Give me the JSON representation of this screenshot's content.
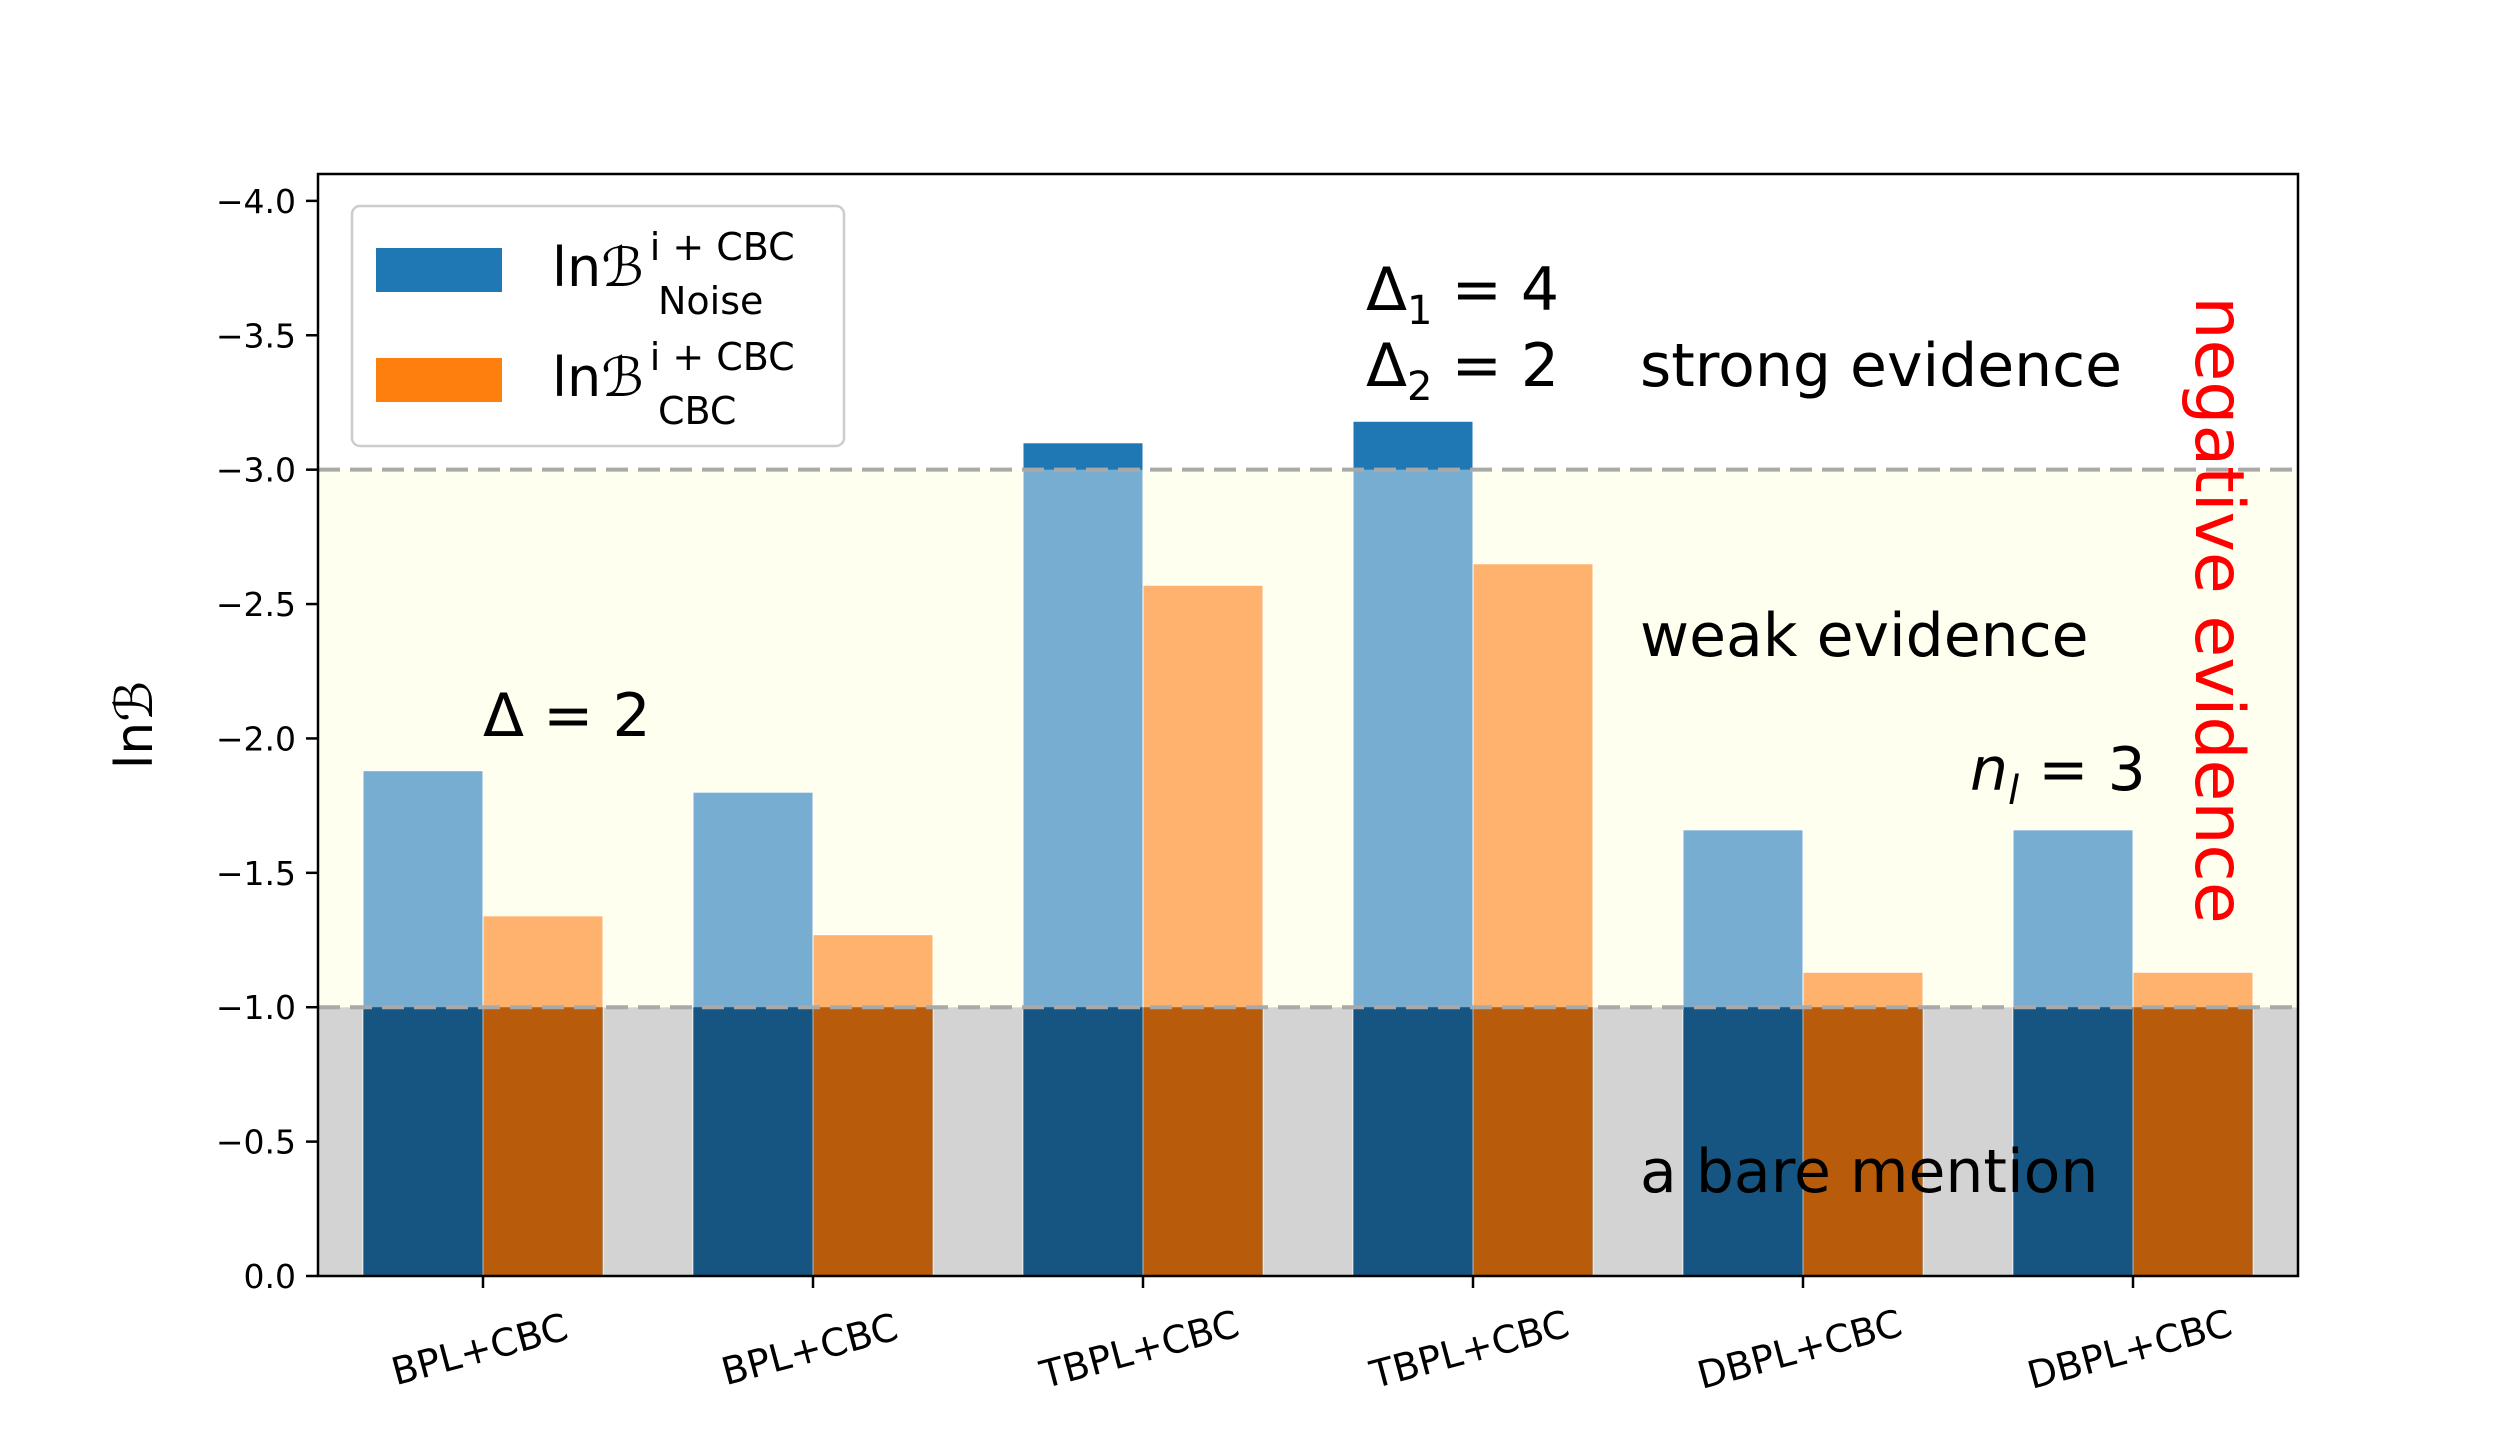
{
  "chart_data": {
    "type": "bar",
    "ylabel": "lnℬ",
    "ylim": [
      0.0,
      -4.1
    ],
    "y_inverted": true,
    "yticks": [
      "0.0",
      "−0.5",
      "−1.0",
      "−1.5",
      "−2.0",
      "−2.5",
      "−3.0",
      "−3.5",
      "−4.0"
    ],
    "ytick_values": [
      0.0,
      -0.5,
      -1.0,
      -1.5,
      -2.0,
      -2.5,
      -3.0,
      -3.5,
      -4.0
    ],
    "categories": [
      "BPL+CBC",
      "BPL+CBC",
      "TBPL+CBC",
      "TBPL+CBC",
      "DBPL+CBC",
      "DBPL+CBC"
    ],
    "series": [
      {
        "legend_main": "lnℬ",
        "legend_sup": "i + CBC",
        "legend_sub": "Noise",
        "color": "#1f77b4",
        "values": [
          -1.88,
          -1.8,
          -3.1,
          -3.18,
          -1.66,
          -1.66
        ]
      },
      {
        "legend_main": "lnℬ",
        "legend_sup": "i + CBC",
        "legend_sub": "CBC",
        "color": "#ff7f0e",
        "values": [
          -1.34,
          -1.27,
          -2.57,
          -2.65,
          -1.13,
          -1.13
        ]
      }
    ],
    "regions": [
      {
        "label": "a bare mention",
        "from": 0.0,
        "to": -1.0,
        "color": "#d3d3d3"
      },
      {
        "label": "weak evidence",
        "from": -1.0,
        "to": -3.0,
        "color": "#fffff0"
      },
      {
        "label": "strong evidence",
        "from": -3.0,
        "to": -4.1,
        "color": "#ffffff"
      }
    ],
    "threshold_lines": [
      -1.0,
      -3.0
    ],
    "side_label": "negative evidence",
    "side_label_color": "#ff0000",
    "annotations": {
      "delta": {
        "main": "Δ = 2"
      },
      "delta1": {
        "pre": "Δ",
        "sub": "1",
        "post": " = 4"
      },
      "delta2": {
        "pre": "Δ",
        "sub": "2",
        "post": " = 2"
      },
      "nl": {
        "pre": "n",
        "sub": "l",
        "post": " = 3"
      }
    },
    "legend_placement": "top-left",
    "grid": false
  }
}
